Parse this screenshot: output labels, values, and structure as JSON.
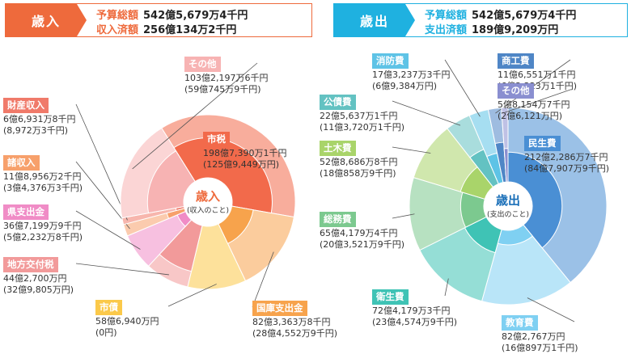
{
  "revenue_header": {
    "tag": "歳入",
    "budget_label": "予算総額",
    "budget_value": "542億5,679万4千円",
    "received_label": "収入済額",
    "received_value": "256億134万2千円",
    "color": "#ee6a3c"
  },
  "expense_header": {
    "tag": "歳出",
    "budget_label": "予算総額",
    "budget_value": "542億5,679万4千円",
    "spent_label": "支出済額",
    "spent_value": "189億9,209万円",
    "color": "#1fb1e0"
  },
  "chart_data": [
    {
      "type": "pie",
      "center_title": "歳入",
      "center_sub": "(収入のこと)",
      "slices": [
        {
          "name": "市税",
          "budget": "198億7,390万1千円",
          "actual": "(125億9,449万円)",
          "budget_value": 198.739,
          "actual_value": 125.9449,
          "color": "#f26a4b"
        },
        {
          "name": "国庫支出金",
          "budget": "82億3,363万8千円",
          "actual": "(28億4,552万9千円)",
          "budget_value": 82.3364,
          "actual_value": 28.4553,
          "color": "#f7a34c"
        },
        {
          "name": "市債",
          "budget": "58億6,940万円",
          "actual": "(0円)",
          "budget_value": 58.694,
          "actual_value": 0,
          "color": "#fbc94a"
        },
        {
          "name": "地方交付税",
          "budget": "44億2,700万円",
          "actual": "(32億9,805万円)",
          "budget_value": 44.27,
          "actual_value": 32.9805,
          "color": "#f29a9a"
        },
        {
          "name": "県支出金",
          "budget": "36億7,199万9千円",
          "actual": "(5億2,232万8千円)",
          "budget_value": 36.72,
          "actual_value": 5.2233,
          "color": "#f08cc6"
        },
        {
          "name": "諸収入",
          "budget": "11億8,956万2千円",
          "actual": "(3億4,376万3千円)",
          "budget_value": 11.8956,
          "actual_value": 3.4376,
          "color": "#f7a06b"
        },
        {
          "name": "財産収入",
          "budget": "6億6,931万8千円",
          "actual": "(8,972万3千円)",
          "budget_value": 6.6932,
          "actual_value": 0.8972,
          "color": "#f07a6a"
        },
        {
          "name": "その他",
          "budget": "103億2,197万6千円",
          "actual": "(59億745万9千円)",
          "budget_value": 103.2198,
          "actual_value": 59.0746,
          "color": "#f7b3b3"
        }
      ]
    },
    {
      "type": "pie",
      "center_title": "歳出",
      "center_sub": "(支出のこと)",
      "slices": [
        {
          "name": "民生費",
          "budget": "212億2,286万7千円",
          "actual": "(84億7,907万9千円)",
          "budget_value": 212.2287,
          "actual_value": 84.7908,
          "color": "#4a8fd4"
        },
        {
          "name": "教育費",
          "budget": "82億2,767万円",
          "actual": "(16億897万1千円)",
          "budget_value": 82.2767,
          "actual_value": 16.0897,
          "color": "#7fd0f2"
        },
        {
          "name": "衛生費",
          "budget": "72億4,179万3千円",
          "actual": "(23億4,574万9千円)",
          "budget_value": 72.4179,
          "actual_value": 23.4575,
          "color": "#3fc3b5"
        },
        {
          "name": "総務費",
          "budget": "65億4,179万4千円",
          "actual": "(20億3,521万9千円)",
          "budget_value": 65.4179,
          "actual_value": 20.3522,
          "color": "#7cc98f"
        },
        {
          "name": "土木費",
          "budget": "52億8,686万8千円",
          "actual": "(18億858万9千円)",
          "budget_value": 52.8687,
          "actual_value": 18.0859,
          "color": "#a9d46a"
        },
        {
          "name": "公債費",
          "budget": "22億5,637万1千円",
          "actual": "(11億3,720万1千円)",
          "budget_value": 22.5637,
          "actual_value": 11.372,
          "color": "#63c2c2"
        },
        {
          "name": "消防費",
          "budget": "17億3,237万3千円",
          "actual": "(6億9,384万円)",
          "budget_value": 17.3237,
          "actual_value": 6.9384,
          "color": "#5ec3e6"
        },
        {
          "name": "商工費",
          "budget": "11億6,551万1千円",
          "actual": "(6億2,223万1千円)",
          "budget_value": 11.6551,
          "actual_value": 6.2223,
          "color": "#4f86c6"
        },
        {
          "name": "その他",
          "budget": "5億8,154万7千円",
          "actual": "(2億6,121万円)",
          "budget_value": 5.8155,
          "actual_value": 2.6121,
          "color": "#8a8fd0"
        }
      ]
    }
  ]
}
